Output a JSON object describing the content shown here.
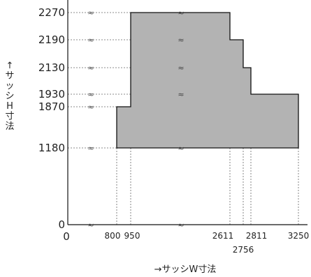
{
  "chart_data": {
    "type": "area",
    "title": "",
    "xlabel": "→サッシW寸法",
    "ylabel": "↑サッシH寸法",
    "x_ticks": [
      {
        "value": 0,
        "label": "0"
      },
      {
        "value": 800,
        "label": "800"
      },
      {
        "value": 950,
        "label": "950"
      },
      {
        "value": 2611,
        "label": "2611"
      },
      {
        "value": 2756,
        "label": "2756"
      },
      {
        "value": 2811,
        "label": "2811"
      },
      {
        "value": 3250,
        "label": "3250"
      }
    ],
    "y_ticks": [
      {
        "value": 0,
        "label": "0"
      },
      {
        "value": 1180,
        "label": "1180"
      },
      {
        "value": 1870,
        "label": "1870"
      },
      {
        "value": 1930,
        "label": "1930"
      },
      {
        "value": 2130,
        "label": "2130"
      },
      {
        "value": 2190,
        "label": "2190"
      },
      {
        "value": 2270,
        "label": "2270"
      }
    ],
    "region": [
      {
        "x": 800,
        "y": 1180
      },
      {
        "x": 800,
        "y": 1870
      },
      {
        "x": 950,
        "y": 1870
      },
      {
        "x": 950,
        "y": 2270
      },
      {
        "x": 2611,
        "y": 2270
      },
      {
        "x": 2611,
        "y": 2190
      },
      {
        "x": 2756,
        "y": 2190
      },
      {
        "x": 2756,
        "y": 2130
      },
      {
        "x": 2811,
        "y": 2130
      },
      {
        "x": 2811,
        "y": 1930
      },
      {
        "x": 3250,
        "y": 1930
      },
      {
        "x": 3250,
        "y": 1180
      }
    ],
    "fill_color": "#b3b3b3",
    "grid": false,
    "break_symbol": "≈"
  }
}
